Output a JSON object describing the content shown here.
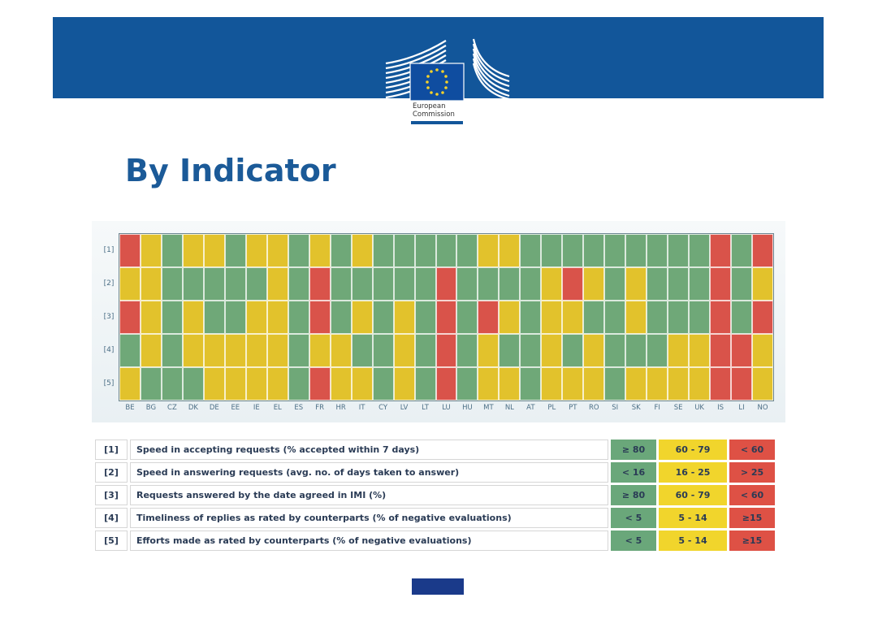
{
  "header": {
    "logo_text_line1": "European",
    "logo_text_line2": "Commission",
    "brand_color": "#12569a"
  },
  "page_title": "By Indicator",
  "chart_data": {
    "type": "heatmap",
    "rows": [
      "[1]",
      "[2]",
      "[3]",
      "[4]",
      "[5]"
    ],
    "columns": [
      "BE",
      "BG",
      "CZ",
      "DK",
      "DE",
      "EE",
      "IE",
      "EL",
      "ES",
      "FR",
      "HR",
      "IT",
      "CY",
      "LV",
      "LT",
      "LU",
      "HU",
      "MT",
      "NL",
      "AT",
      "PL",
      "PT",
      "RO",
      "SI",
      "SK",
      "FI",
      "SE",
      "UK",
      "IS",
      "LI",
      "NO"
    ],
    "colors": {
      "G": "#6fa878",
      "Y": "#e2c22c",
      "R": "#d9534a"
    },
    "values": [
      [
        "R",
        "Y",
        "G",
        "Y",
        "Y",
        "G",
        "Y",
        "Y",
        "G",
        "Y",
        "G",
        "Y",
        "G",
        "G",
        "G",
        "G",
        "G",
        "Y",
        "Y",
        "G",
        "G",
        "G",
        "G",
        "G",
        "G",
        "G",
        "G",
        "G",
        "R",
        "G",
        "R"
      ],
      [
        "Y",
        "Y",
        "G",
        "G",
        "G",
        "G",
        "G",
        "Y",
        "G",
        "R",
        "G",
        "G",
        "G",
        "G",
        "G",
        "R",
        "G",
        "G",
        "G",
        "G",
        "Y",
        "R",
        "Y",
        "G",
        "Y",
        "G",
        "G",
        "G",
        "R",
        "G",
        "Y"
      ],
      [
        "R",
        "Y",
        "G",
        "Y",
        "G",
        "G",
        "Y",
        "Y",
        "G",
        "R",
        "G",
        "Y",
        "G",
        "Y",
        "G",
        "R",
        "G",
        "R",
        "Y",
        "G",
        "Y",
        "Y",
        "G",
        "G",
        "Y",
        "G",
        "G",
        "G",
        "R",
        "G",
        "R"
      ],
      [
        "G",
        "Y",
        "G",
        "Y",
        "Y",
        "Y",
        "Y",
        "Y",
        "G",
        "Y",
        "Y",
        "G",
        "G",
        "Y",
        "G",
        "R",
        "G",
        "Y",
        "G",
        "G",
        "Y",
        "G",
        "Y",
        "G",
        "G",
        "G",
        "Y",
        "Y",
        "R",
        "R",
        "Y"
      ],
      [
        "Y",
        "G",
        "G",
        "G",
        "Y",
        "Y",
        "Y",
        "Y",
        "G",
        "R",
        "Y",
        "Y",
        "G",
        "Y",
        "G",
        "R",
        "G",
        "Y",
        "Y",
        "G",
        "Y",
        "Y",
        "Y",
        "G",
        "Y",
        "Y",
        "Y",
        "Y",
        "R",
        "R",
        "Y"
      ]
    ]
  },
  "legend": {
    "colors": {
      "green": "#6aa77a",
      "yellow": "#f1d52c",
      "red": "#de5145"
    },
    "rows": [
      {
        "index": "[1]",
        "description": "Speed in accepting requests (% accepted within 7 days)",
        "green": "≥ 80",
        "yellow": "60 - 79",
        "red": "< 60"
      },
      {
        "index": "[2]",
        "description": "Speed in answering requests (avg. no. of days taken to answer)",
        "green": "< 16",
        "yellow": "16 - 25",
        "red": "> 25"
      },
      {
        "index": "[3]",
        "description": "Requests answered by the date agreed in IMI (%)",
        "green": "≥ 80",
        "yellow": "60 - 79",
        "red": "< 60"
      },
      {
        "index": "[4]",
        "description": "Timeliness of replies as rated by counterparts (% of negative evaluations)",
        "green": "< 5",
        "yellow": "5 - 14",
        "red": "≥15"
      },
      {
        "index": "[5]",
        "description": "Efforts made as rated by counterparts (% of negative evaluations)",
        "green": "< 5",
        "yellow": "5 - 14",
        "red": "≥15"
      }
    ]
  }
}
